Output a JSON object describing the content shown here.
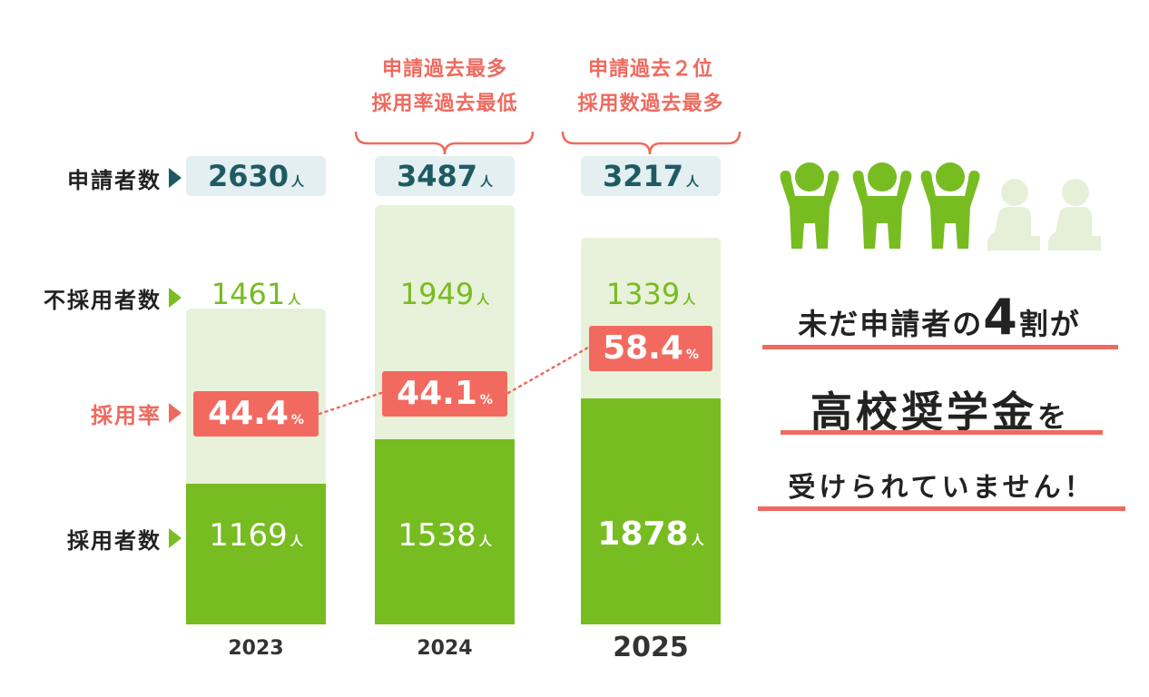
{
  "chart_data": {
    "type": "bar",
    "categories": [
      "2023",
      "2024",
      "2025"
    ],
    "series": [
      {
        "name": "申請者数",
        "values": [
          2630,
          3487,
          3217
        ]
      },
      {
        "name": "不採用者数",
        "values": [
          1461,
          1949,
          1339
        ]
      },
      {
        "name": "採用者数",
        "values": [
          1169,
          1538,
          1878
        ]
      },
      {
        "name": "採用率",
        "values": [
          44.4,
          44.1,
          58.4
        ]
      }
    ]
  },
  "row_labels": {
    "applicants": "申請者数",
    "rejected": "不採用者数",
    "rate": "採用率",
    "adopted": "採用者数"
  },
  "units": {
    "person": "人",
    "percent": "%"
  },
  "bars": [
    {
      "year": "2023",
      "applicants": "2630",
      "rejected": "1461",
      "adopted": "1169",
      "rate": "44.4"
    },
    {
      "year": "2024",
      "applicants": "3487",
      "rejected": "1949",
      "adopted": "1538",
      "rate": "44.1"
    },
    {
      "year": "2025",
      "applicants": "3217",
      "rejected": "1339",
      "adopted": "1878",
      "rate": "58.4"
    }
  ],
  "callouts": [
    {
      "line1": "申請過去最多",
      "line2": "採用率過去最低"
    },
    {
      "line1": "申請過去２位",
      "line2": "採用数過去最多"
    }
  ],
  "message": {
    "line1_a": "未だ申請者の",
    "line1_num": "4",
    "line1_b": "割が",
    "line2_a": "高校奨学金",
    "line2_b": "を",
    "line3": "受けられていません！"
  },
  "icons": {
    "count_success": 3,
    "count_fail": 2
  },
  "colors": {
    "green": "#77bc21",
    "light_green": "#e8f2da",
    "teal": "#1f5a63",
    "coral": "#f26a5f",
    "pale_teal": "#e3eff0"
  }
}
